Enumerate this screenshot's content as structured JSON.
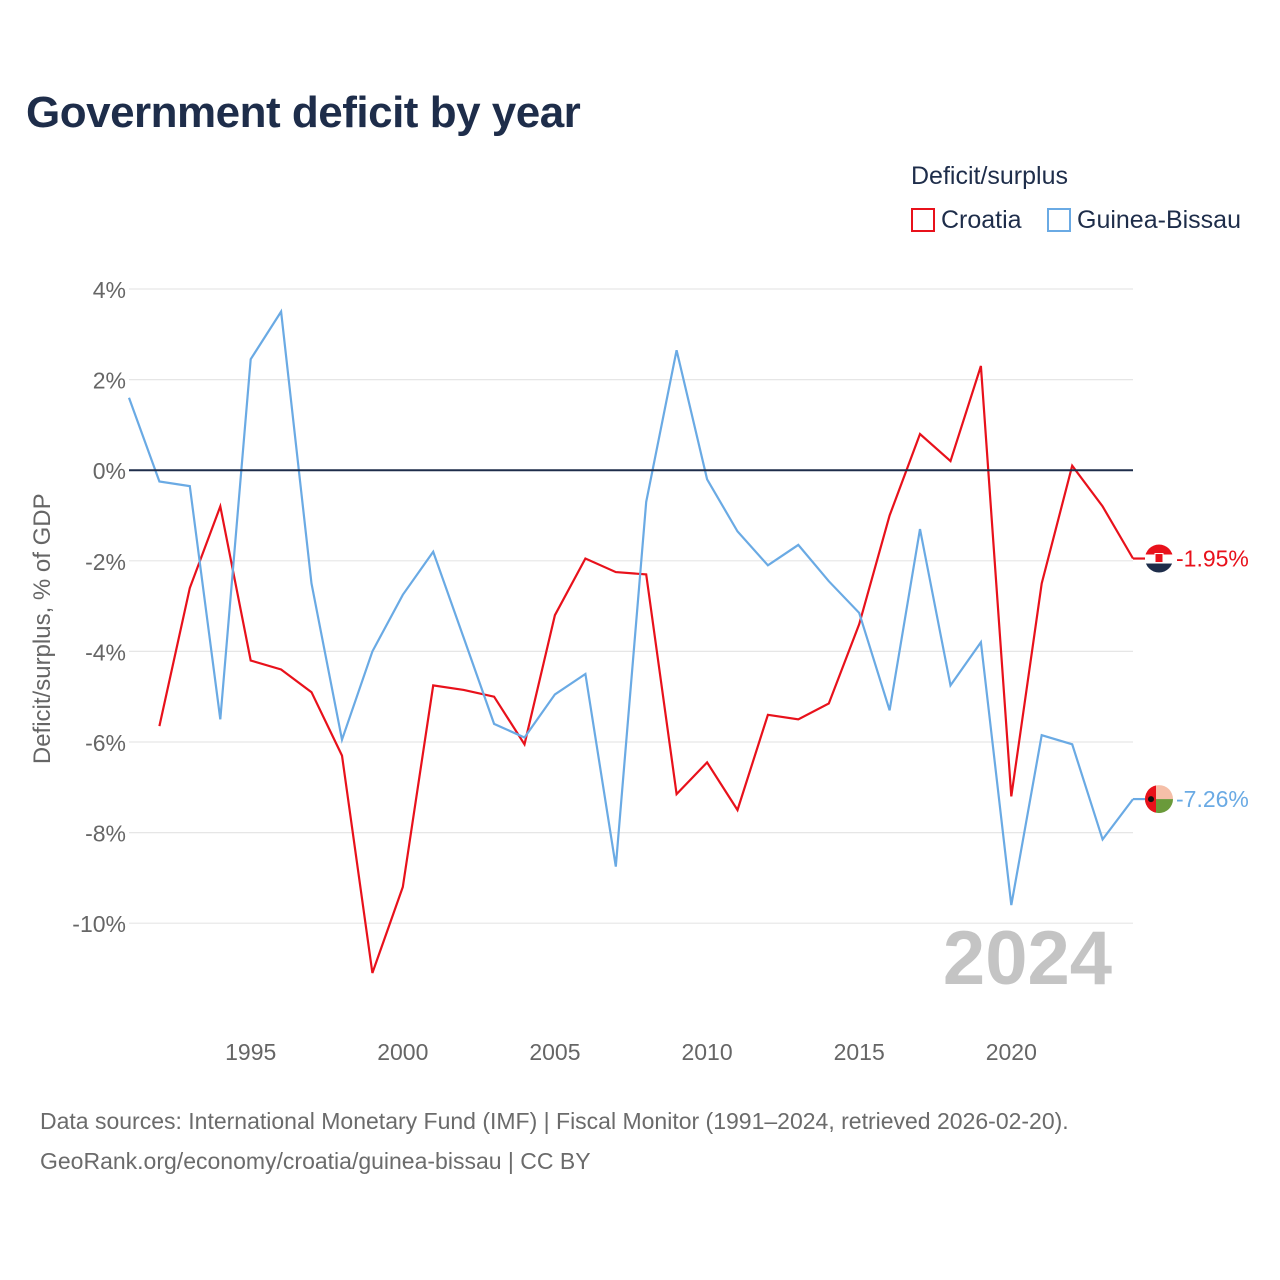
{
  "chart_data": {
    "type": "line",
    "title": "Government deficit by year",
    "ylabel": "Deficit/surplus, % of GDP",
    "xlabel": "",
    "legend_title": "Deficit/surplus",
    "legend_position": "top-right",
    "year_label": "2024",
    "xlim": [
      1991,
      2024
    ],
    "ylim": [
      -12,
      4.5
    ],
    "y_ticks": [
      4,
      2,
      0,
      -2,
      -4,
      -6,
      -8,
      -10
    ],
    "y_tick_labels": [
      "4%",
      "2%",
      "0%",
      "-2%",
      "-4%",
      "-6%",
      "-8%",
      "-10%"
    ],
    "x_ticks": [
      1995,
      2000,
      2005,
      2010,
      2015,
      2020
    ],
    "x_tick_labels": [
      "1995",
      "2000",
      "2005",
      "2010",
      "2015",
      "2020"
    ],
    "series": [
      {
        "name": "Croatia",
        "color": "#e8111b",
        "end_label": "-1.95%",
        "x": [
          1992,
          1993,
          1994,
          1995,
          1996,
          1997,
          1998,
          1999,
          2000,
          2001,
          2002,
          2003,
          2004,
          2005,
          2006,
          2007,
          2008,
          2009,
          2010,
          2011,
          2012,
          2013,
          2014,
          2015,
          2016,
          2017,
          2018,
          2019,
          2020,
          2021,
          2022,
          2023,
          2024
        ],
        "values": [
          -5.65,
          -2.6,
          -0.8,
          -4.2,
          -4.4,
          -4.9,
          -6.3,
          -11.1,
          -9.2,
          -4.75,
          -4.85,
          -5.0,
          -6.05,
          -3.2,
          -1.95,
          -2.25,
          -2.3,
          -7.15,
          -6.45,
          -7.5,
          -5.4,
          -5.5,
          -5.15,
          -3.4,
          -1.0,
          0.8,
          0.2,
          2.3,
          -7.2,
          -2.5,
          0.1,
          -0.8,
          -1.95
        ]
      },
      {
        "name": "Guinea-Bissau",
        "color": "#6aaae4",
        "end_label": "-7.26%",
        "x": [
          1991,
          1992,
          1993,
          1994,
          1995,
          1996,
          1997,
          1998,
          1999,
          2000,
          2001,
          2002,
          2003,
          2004,
          2005,
          2006,
          2007,
          2008,
          2009,
          2010,
          2011,
          2012,
          2013,
          2014,
          2015,
          2016,
          2017,
          2018,
          2019,
          2020,
          2021,
          2022,
          2023,
          2024
        ],
        "values": [
          1.6,
          -0.25,
          -0.35,
          -5.5,
          2.45,
          3.5,
          -2.5,
          -5.95,
          -4.0,
          -2.75,
          -1.8,
          -3.7,
          -5.6,
          -5.9,
          -4.95,
          -4.5,
          -8.75,
          -0.7,
          2.65,
          -0.2,
          -1.35,
          -2.1,
          -1.65,
          -2.45,
          -3.15,
          -5.3,
          -1.3,
          -4.75,
          -3.8,
          -9.6,
          -5.85,
          -6.05,
          -8.15,
          -7.26
        ]
      }
    ]
  },
  "footer": {
    "line1": "Data sources: International Monetary Fund (IMF) | Fiscal Monitor (1991–2024, retrieved 2026-02-20).",
    "line2": "GeoRank.org/economy/croatia/guinea-bissau | CC BY"
  },
  "colors": {
    "title": "#1e2d4a",
    "grid": "#e6e6e6",
    "zero_line": "#1e2d4a",
    "axis_text": "#666666",
    "year_watermark": "#c4c4c4"
  }
}
